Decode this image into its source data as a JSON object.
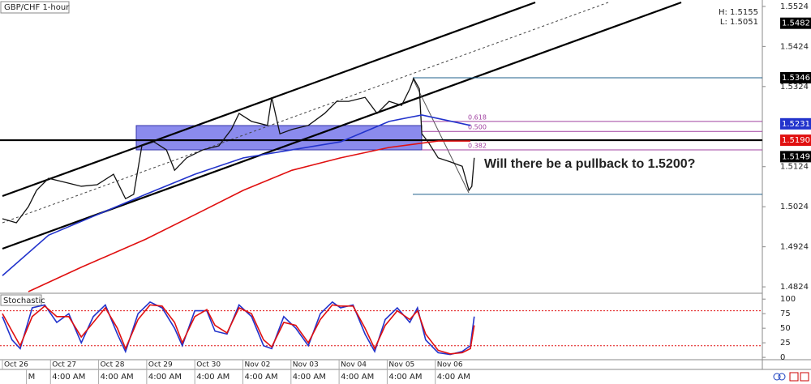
{
  "chart_data": [
    {
      "type": "line",
      "title": "GBP/CHF 1-hour",
      "high_label": "H: 1.5155",
      "low_label": "L: 1.5051",
      "annotation": "Will there be a pullback to 1.5200?",
      "xlim": [
        -0.05,
        15.8
      ],
      "ylim": [
        1.4808,
        1.554
      ],
      "yticks": [
        1.5524,
        1.5424,
        1.5324,
        1.5124,
        1.5024,
        1.4924,
        1.4824
      ],
      "xticks": [
        {
          "value": 0,
          "label": "Oct 26"
        },
        {
          "value": 1,
          "label": "Oct 27"
        },
        {
          "value": 2,
          "label": "Oct 28"
        },
        {
          "value": 3,
          "label": "Oct 29"
        },
        {
          "value": 4,
          "label": "Oct 30"
        },
        {
          "value": 5,
          "label": "Nov 02"
        },
        {
          "value": 6,
          "label": "Nov 03"
        },
        {
          "value": 7,
          "label": "Nov 04"
        },
        {
          "value": 8,
          "label": "Nov 05"
        },
        {
          "value": 9,
          "label": "Nov 06"
        }
      ],
      "time_labels": [
        {
          "value": 0.5,
          "label": "M"
        },
        {
          "value": 1,
          "label": "4:00 AM"
        },
        {
          "value": 2,
          "label": "4:00 AM"
        },
        {
          "value": 3,
          "label": "4:00 AM"
        },
        {
          "value": 4,
          "label": "4:00 AM"
        },
        {
          "value": 5,
          "label": "4:00 AM"
        },
        {
          "value": 6,
          "label": "4:00 AM"
        },
        {
          "value": 7,
          "label": "4:00 AM"
        },
        {
          "value": 8,
          "label": "4:00 AM"
        },
        {
          "value": 9,
          "label": "4:00 AM"
        }
      ],
      "series": [
        {
          "name": "GBP/CHF",
          "color": "#111111",
          "x": [
            0,
            0.29,
            0.54,
            0.71,
            0.96,
            1.3,
            1.64,
            1.97,
            2.31,
            2.56,
            2.73,
            2.9,
            3.15,
            3.41,
            3.58,
            3.83,
            4.17,
            4.5,
            4.76,
            4.92,
            5.18,
            5.51,
            5.6,
            5.77,
            6.02,
            6.36,
            6.7,
            6.95,
            7.2,
            7.54,
            7.79,
            8.04,
            8.3,
            8.47,
            8.55,
            8.67,
            8.72,
            8.85,
            9.06,
            9.31,
            9.56,
            9.7,
            9.76,
            9.81
          ],
          "values": [
            1.4994,
            1.4984,
            1.5024,
            1.5065,
            1.5095,
            1.5085,
            1.5075,
            1.5079,
            1.5105,
            1.5044,
            1.5055,
            1.5176,
            1.5186,
            1.5166,
            1.5115,
            1.5146,
            1.5166,
            1.5176,
            1.5217,
            1.5257,
            1.5237,
            1.5227,
            1.5297,
            1.5206,
            1.5217,
            1.5227,
            1.5257,
            1.5287,
            1.5287,
            1.5297,
            1.5257,
            1.5287,
            1.5277,
            1.5318,
            1.5344,
            1.5318,
            1.5206,
            1.5186,
            1.5146,
            1.5136,
            1.5125,
            1.5065,
            1.5075,
            1.5146
          ]
        },
        {
          "color": "#2233cc",
          "x": [
            0,
            0.96,
            1.97,
            2.98,
            4.0,
            5.01,
            6.02,
            7.03,
            8.04,
            8.72,
            9.73
          ],
          "values": [
            1.4852,
            1.4953,
            1.5004,
            1.5055,
            1.5105,
            1.5146,
            1.5166,
            1.5186,
            1.5237,
            1.5253,
            1.5227
          ]
        },
        {
          "color": "#e01010",
          "x": [
            0.54,
            1.64,
            2.98,
            4.0,
            5.01,
            6.02,
            7.03,
            8.04,
            9.06,
            9.73
          ],
          "values": [
            1.4812,
            1.4873,
            1.4943,
            1.5004,
            1.5065,
            1.5115,
            1.5146,
            1.5172,
            1.5188,
            1.5188
          ]
        }
      ],
      "fib_levels": [
        {
          "label": "0.618",
          "value": 1.5237
        },
        {
          "label": "0.500",
          "value": 1.5212
        },
        {
          "label": "0.382",
          "value": 1.5166
        }
      ],
      "levels": [
        {
          "value": 1.5346,
          "color": "#1f5f8b"
        },
        {
          "value": 1.5055,
          "color": "#1f5f8b"
        },
        {
          "value": 1.519,
          "color": "#000000"
        }
      ],
      "price_labels": [
        {
          "value": 1.5482,
          "label": "1.5482",
          "color": "#000000"
        },
        {
          "value": 1.5346,
          "label": "1.5346",
          "color": "#000000"
        },
        {
          "value": 1.5231,
          "label": "1.5231",
          "color": "#2233cc"
        },
        {
          "value": 1.519,
          "label": "1.5190",
          "color": "#e01010"
        },
        {
          "value": 1.5149,
          "label": "1.5149",
          "color": "#000000"
        }
      ]
    },
    {
      "type": "line",
      "title": "Stochastic",
      "xlim": [
        -0.05,
        15.8
      ],
      "ylim": [
        -4,
        110
      ],
      "yticks": [
        100,
        75,
        50,
        25,
        0
      ],
      "levels": [
        80,
        20
      ],
      "x": [
        0,
        0.2,
        0.37,
        0.62,
        0.88,
        1.13,
        1.38,
        1.64,
        1.89,
        2.14,
        2.39,
        2.56,
        2.82,
        3.07,
        3.32,
        3.58,
        3.74,
        4.0,
        4.25,
        4.42,
        4.67,
        4.92,
        5.18,
        5.43,
        5.6,
        5.85,
        6.1,
        6.36,
        6.61,
        6.86,
        7.03,
        7.29,
        7.54,
        7.74,
        7.96,
        8.21,
        8.47,
        8.63,
        8.8,
        9.06,
        9.31,
        9.56,
        9.73,
        9.81
      ],
      "series": [
        {
          "color": "#2233cc",
          "values": [
            70,
            30,
            15,
            85,
            90,
            60,
            75,
            25,
            70,
            90,
            40,
            10,
            75,
            95,
            85,
            50,
            20,
            80,
            80,
            45,
            40,
            90,
            70,
            20,
            15,
            70,
            50,
            20,
            75,
            95,
            85,
            90,
            40,
            10,
            65,
            85,
            60,
            85,
            30,
            8,
            5,
            10,
            20,
            70
          ]
        },
        {
          "color": "#e01010",
          "values": [
            75,
            45,
            20,
            70,
            88,
            70,
            70,
            35,
            60,
            85,
            50,
            15,
            65,
            90,
            88,
            60,
            25,
            70,
            82,
            55,
            42,
            85,
            75,
            30,
            18,
            60,
            55,
            25,
            65,
            90,
            88,
            88,
            50,
            15,
            55,
            80,
            65,
            80,
            40,
            12,
            6,
            8,
            15,
            55
          ]
        }
      ]
    }
  ]
}
